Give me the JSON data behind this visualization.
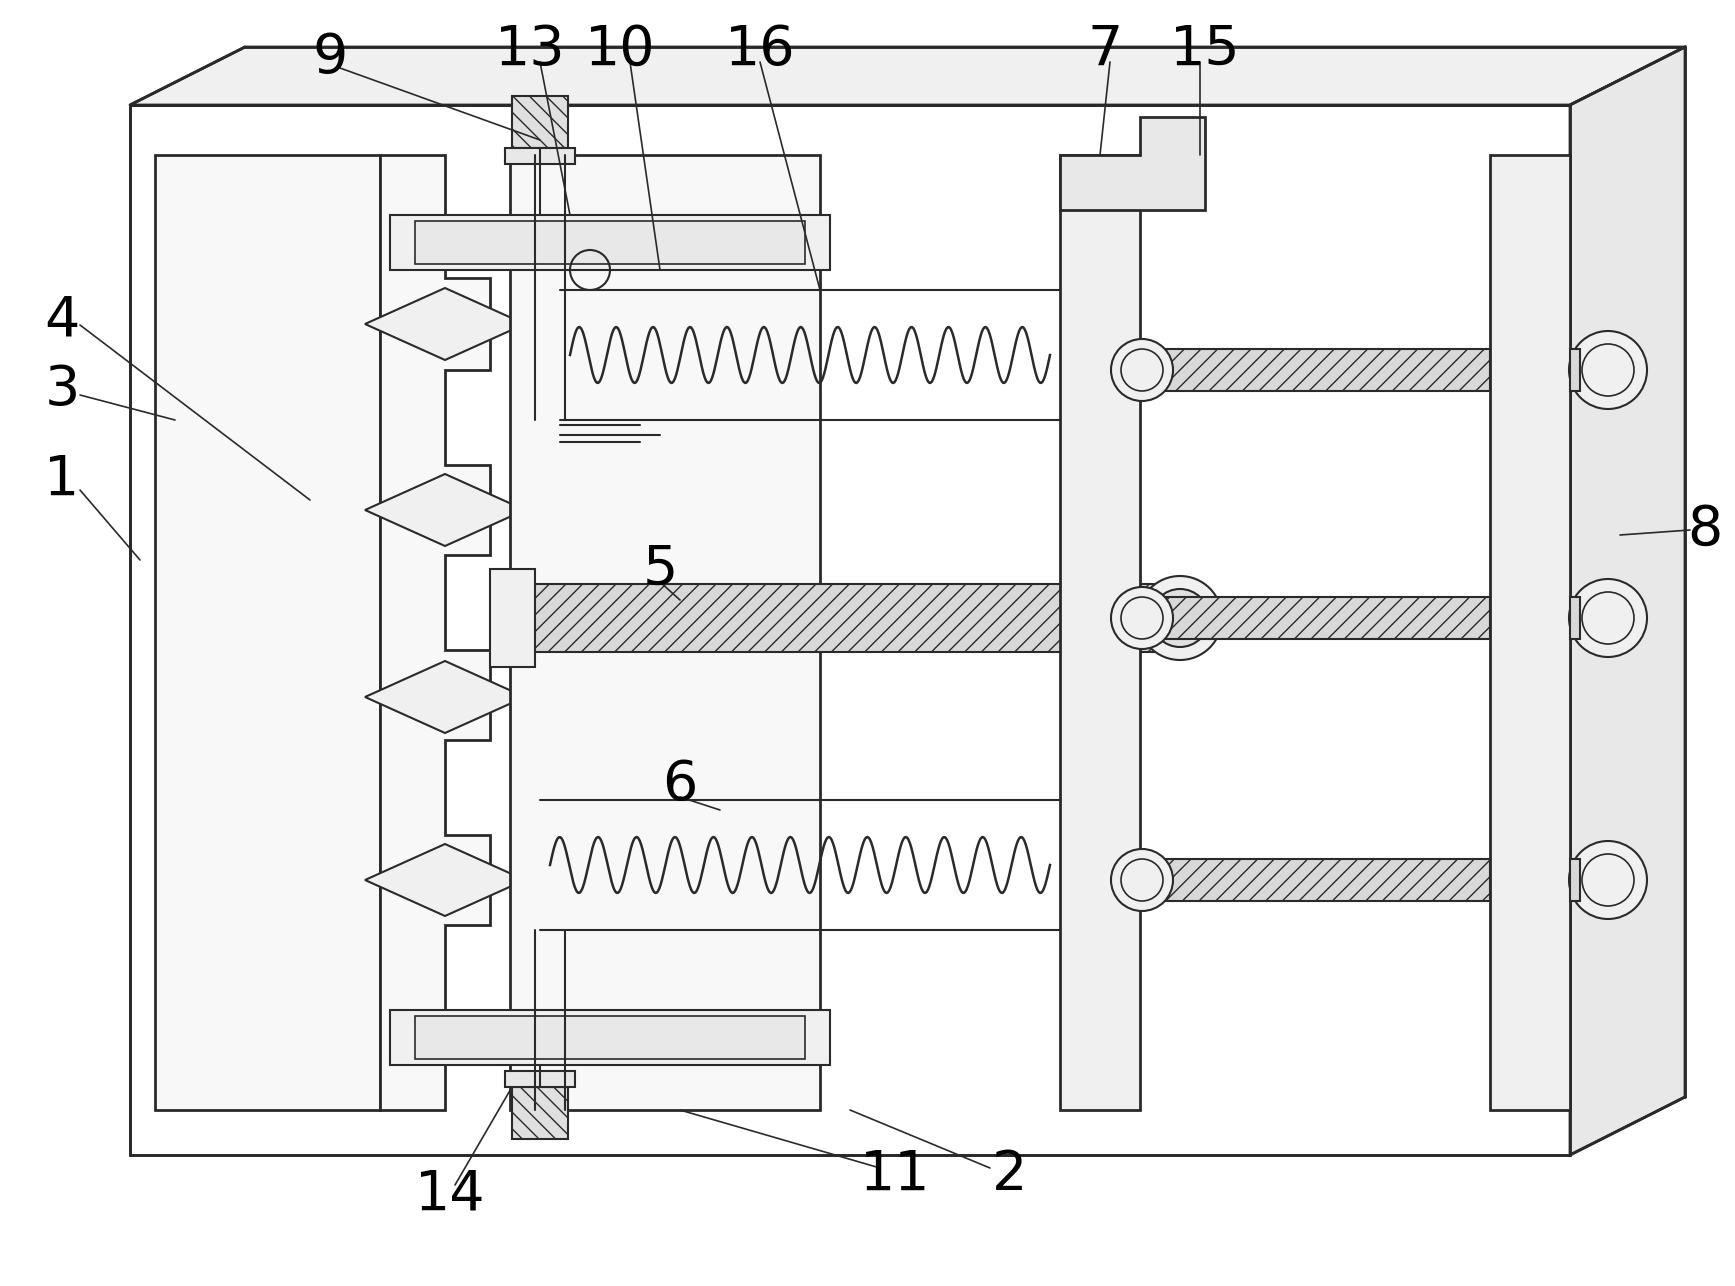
{
  "bg": "#ffffff",
  "lc": "#2a2a2a",
  "lc_thin": "#3a3a3a",
  "label_fs": 40,
  "label_color": "#000000",
  "fig_w": 17.35,
  "fig_h": 12.86,
  "dpi": 100
}
